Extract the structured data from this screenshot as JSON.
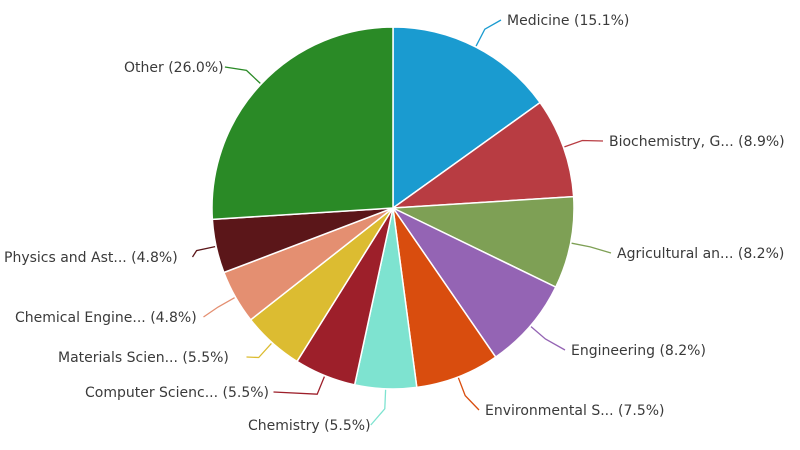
{
  "chart_data": {
    "type": "pie",
    "slices": [
      {
        "label": "Medicine (15.1%)",
        "value": 15.1,
        "color": "#1a9bd0"
      },
      {
        "label": "Biochemistry, G... (8.9%)",
        "value": 8.9,
        "color": "#b83c42"
      },
      {
        "label": "Agricultural an... (8.2%)",
        "value": 8.2,
        "color": "#7ea055"
      },
      {
        "label": "Engineering (8.2%)",
        "value": 8.2,
        "color": "#9464b4"
      },
      {
        "label": "Environmental S... (7.5%)",
        "value": 7.5,
        "color": "#d94d0e"
      },
      {
        "label": "Chemistry (5.5%)",
        "value": 5.5,
        "color": "#7ee3d0"
      },
      {
        "label": "Computer Scienc... (5.5%)",
        "value": 5.5,
        "color": "#9d1f2a"
      },
      {
        "label": "Materials Scien... (5.5%)",
        "value": 5.5,
        "color": "#dcbc31"
      },
      {
        "label": "Chemical Engine... (4.8%)",
        "value": 4.8,
        "color": "#e48f71"
      },
      {
        "label": "Physics and Ast... (4.8%)",
        "value": 4.8,
        "color": "#5b1619"
      },
      {
        "label": "Other (26.0%)",
        "value": 26.0,
        "color": "#2a8a26"
      }
    ]
  }
}
